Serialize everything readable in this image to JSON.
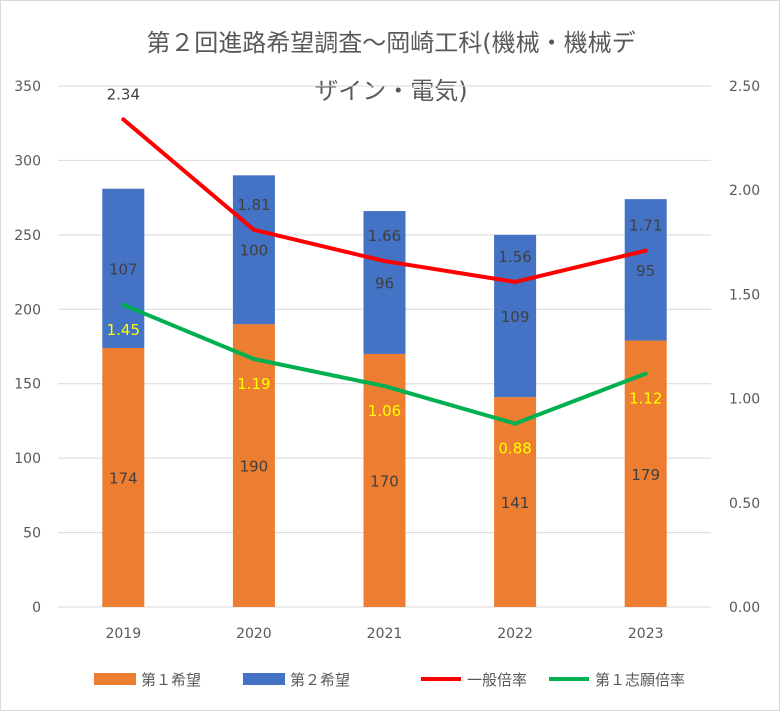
{
  "chart_data": {
    "type": "bar",
    "title_lines": [
      "第２回進路希望調査～岡崎工科(機械・機械デ",
      "ザイン・電気)"
    ],
    "categories": [
      "2019",
      "2020",
      "2021",
      "2022",
      "2023"
    ],
    "series": [
      {
        "name": "第１希望",
        "kind": "bar",
        "axis": "left",
        "color": "#ED7D31",
        "values": [
          174,
          190,
          170,
          141,
          179
        ]
      },
      {
        "name": "第２希望",
        "kind": "bar",
        "axis": "left",
        "color": "#4472C4",
        "values": [
          107,
          100,
          96,
          109,
          95
        ]
      },
      {
        "name": "一般倍率",
        "kind": "line",
        "axis": "right",
        "color": "#FF0000",
        "label_color": "#404040",
        "values": [
          2.34,
          1.81,
          1.66,
          1.56,
          1.71
        ],
        "labels": [
          "2.34",
          "1.81",
          "1.66",
          "1.56",
          "1.71"
        ]
      },
      {
        "name": "第１志願倍率",
        "kind": "line",
        "axis": "right",
        "color": "#00B050",
        "label_color": "#FFFF00",
        "values": [
          1.45,
          1.19,
          1.06,
          0.88,
          1.12
        ],
        "labels": [
          "1.45",
          "1.19",
          "1.06",
          "0.88",
          "1.12"
        ]
      }
    ],
    "left_axis": {
      "range": [
        0,
        350
      ],
      "ticks": [
        "0",
        "50",
        "100",
        "150",
        "200",
        "250",
        "300",
        "350"
      ]
    },
    "right_axis": {
      "range": [
        0,
        2.5
      ],
      "ticks": [
        "0.00",
        "0.50",
        "1.00",
        "1.50",
        "2.00",
        "2.50"
      ]
    },
    "stacked": true,
    "grid": true,
    "legend_position": "bottom"
  }
}
